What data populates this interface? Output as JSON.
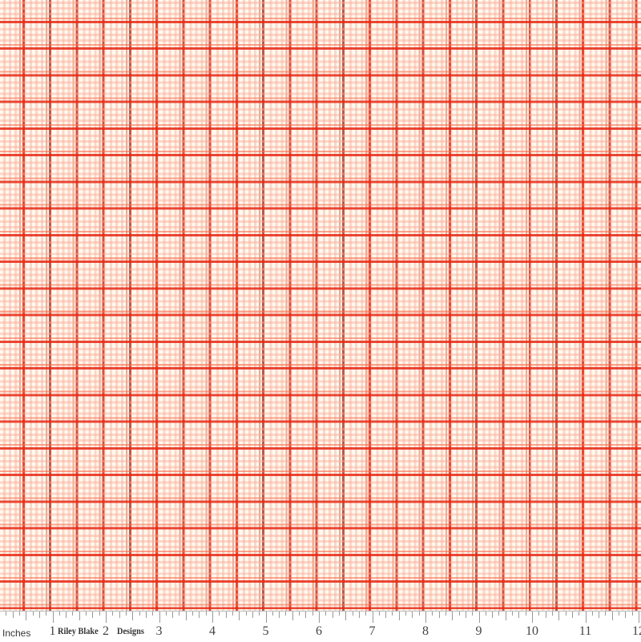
{
  "fabric": {
    "pattern": "plaid",
    "colors": {
      "background": "#fffaf0",
      "main_line": "#e6281a",
      "secondary_line": "#fa6e50",
      "light_line": "#ffaa96"
    }
  },
  "ruler": {
    "unit_label": "Inches",
    "brand_part1": "Riley Blake",
    "brand_part2": "Designs",
    "numbers": [
      "1",
      "2",
      "3",
      "4",
      "5",
      "6",
      "7",
      "8",
      "9",
      "10",
      "11",
      "12"
    ]
  }
}
